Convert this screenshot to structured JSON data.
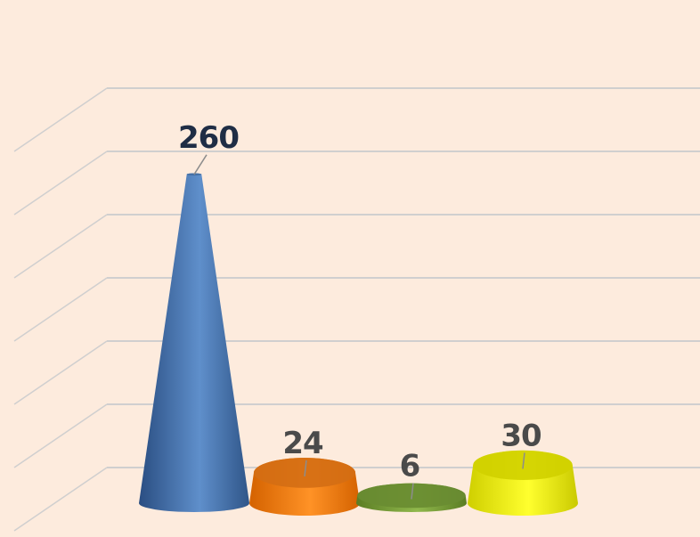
{
  "chart_data": {
    "type": "bar",
    "shape": "cone",
    "title": "",
    "xlabel": "",
    "ylabel": "",
    "categories": [
      "",
      "",
      "",
      ""
    ],
    "values": [
      260,
      24,
      6,
      30
    ],
    "data_labels": [
      "260",
      "24",
      "6",
      "30"
    ],
    "ylim": [
      0,
      300
    ],
    "grid": true,
    "legend": "none",
    "colors": [
      "#4f80bd",
      "#f57f17",
      "#7aa23a",
      "#f2f200"
    ]
  },
  "style": {
    "background": "#fdebdd",
    "gridline_color": "#d0cfcf",
    "label_colors": [
      "#1f2d45",
      "#4a4a4a",
      "#4a4a4a",
      "#4a4a4a"
    ]
  }
}
